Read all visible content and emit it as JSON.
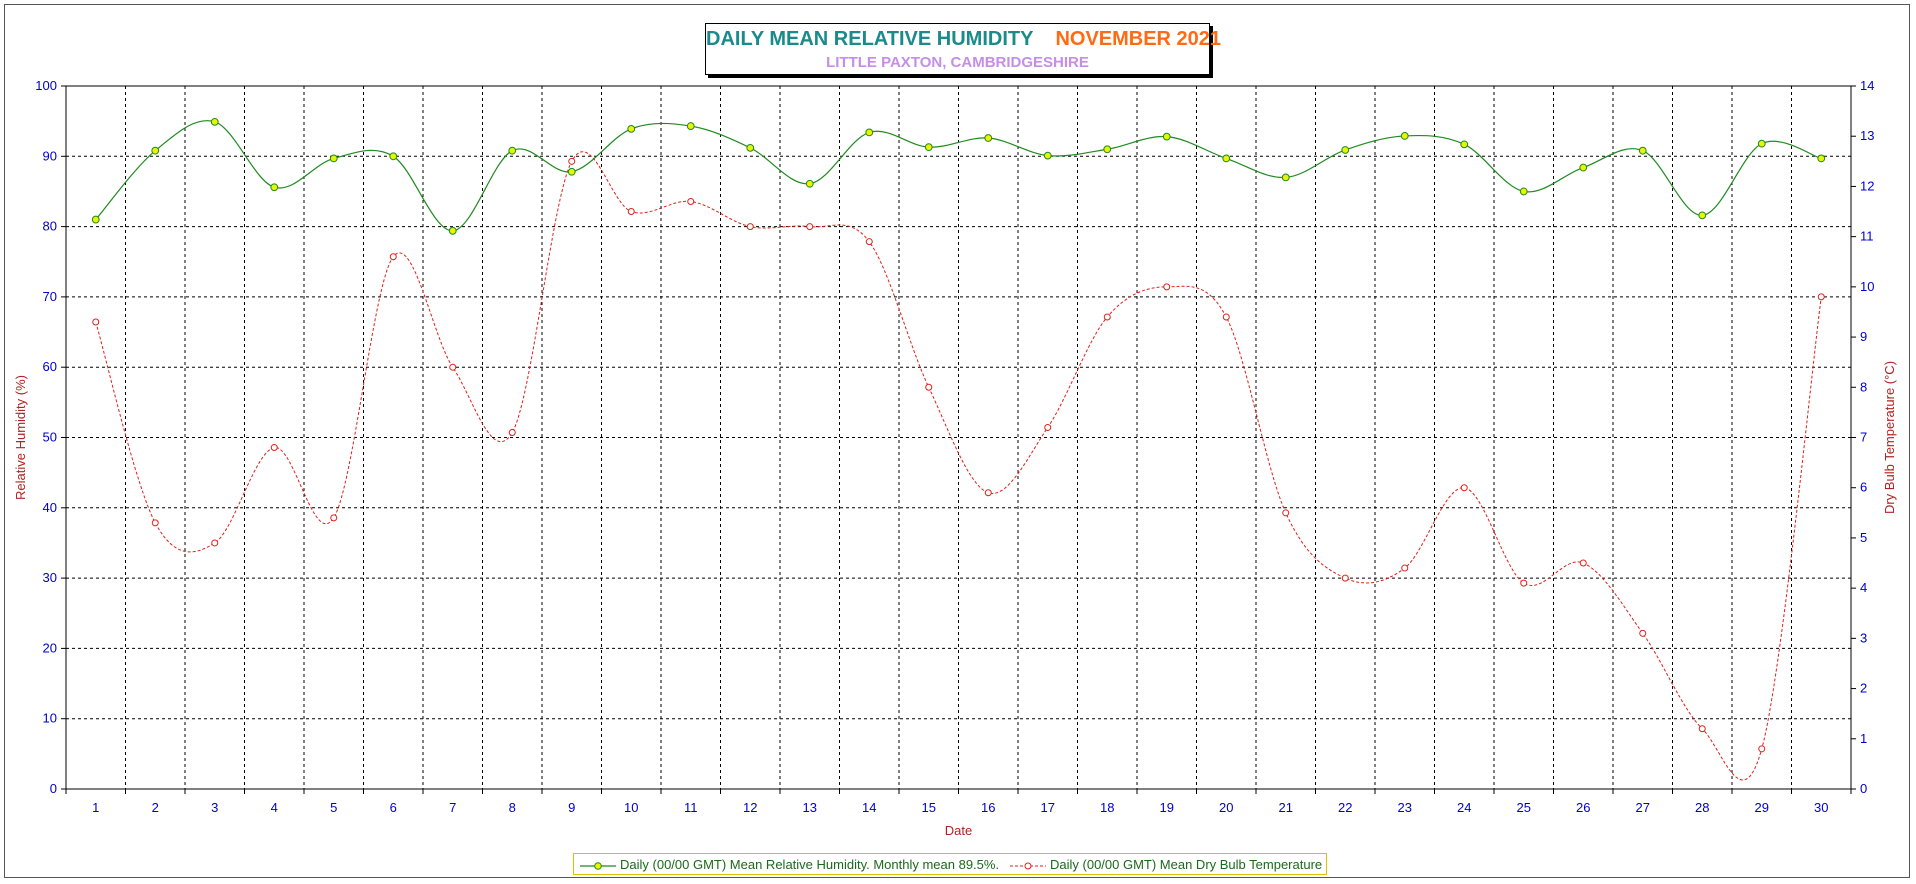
{
  "title": {
    "main_left": "DAILY MEAN RELATIVE HUMIDITY",
    "main_right": "NOVEMBER 2021",
    "subtitle": "LITTLE PAXTON, CAMBRIDGESHIRE"
  },
  "colors": {
    "humidity_line": "#1f8a1f",
    "humidity_marker": "#e8f500",
    "temperature_line": "#e0201a",
    "tick_text": "#0000cc",
    "axis_title": "#b22222",
    "title_left": "#1a8a8a",
    "title_right": "#ff6a13",
    "subtitle": "#c58ee8"
  },
  "legend": {
    "humidity_label": "Daily (00/00 GMT) Mean Relative Humidity. Monthly mean 89.5%.",
    "temperature_label": "Daily (00/00 GMT) Mean Dry Bulb Temperature"
  },
  "chart_data": {
    "type": "line",
    "xlabel": "Date",
    "ylabel": "Relative Humidity (%)",
    "y2label": "Dry Bulb Temperature (°C)",
    "x": [
      1,
      2,
      3,
      4,
      5,
      6,
      7,
      8,
      9,
      10,
      11,
      12,
      13,
      14,
      15,
      16,
      17,
      18,
      19,
      20,
      21,
      22,
      23,
      24,
      25,
      26,
      27,
      28,
      29,
      30
    ],
    "ylim": [
      0,
      100
    ],
    "y_ticks": [
      0,
      10,
      20,
      30,
      40,
      50,
      60,
      70,
      80,
      90,
      100
    ],
    "y2lim": [
      0,
      14
    ],
    "y2_ticks": [
      0,
      1,
      2,
      3,
      4,
      5,
      6,
      7,
      8,
      9,
      10,
      11,
      12,
      13,
      14
    ],
    "grid": true,
    "legend_position": "bottom",
    "series": [
      {
        "name": "Daily (00/00 GMT) Mean Relative Humidity. Monthly mean 89.5%.",
        "axis": "left",
        "values": [
          81.0,
          90.8,
          94.9,
          85.6,
          89.7,
          90.0,
          79.4,
          90.8,
          87.8,
          93.9,
          94.3,
          91.2,
          86.1,
          93.4,
          91.3,
          92.6,
          90.1,
          91.0,
          92.8,
          89.7,
          87.0,
          90.9,
          92.9,
          91.7,
          85.0,
          88.4,
          90.8,
          81.6,
          91.8,
          89.7
        ]
      },
      {
        "name": "Daily (00/00 GMT) Mean Dry Bulb Temperature",
        "axis": "right",
        "values": [
          9.3,
          5.3,
          4.9,
          6.8,
          5.4,
          10.6,
          8.4,
          7.1,
          12.5,
          11.5,
          11.7,
          11.2,
          11.2,
          10.9,
          8.0,
          5.9,
          7.2,
          9.4,
          10.0,
          9.4,
          5.5,
          4.2,
          4.4,
          6.0,
          4.1,
          4.5,
          3.1,
          1.2,
          0.8,
          9.8
        ]
      }
    ]
  }
}
